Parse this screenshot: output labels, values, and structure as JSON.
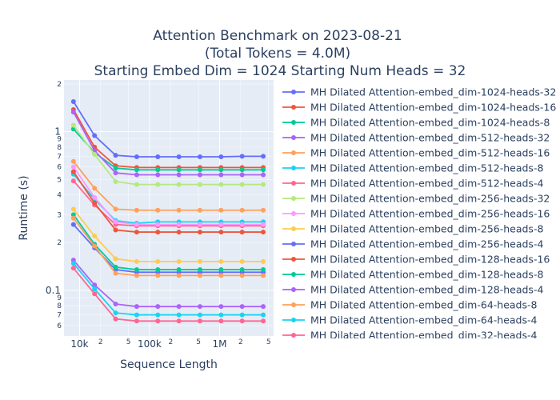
{
  "chart_data": {
    "type": "line",
    "title_lines": [
      "Attention Benchmark on 2023-08-21",
      "(Total Tokens = 4.0M)",
      "Starting Embed Dim = 1024 Starting Num Heads = 32"
    ],
    "xlabel": "Sequence Length",
    "ylabel": "Runtime (s)",
    "x_scale": "log",
    "y_scale": "log",
    "xlim": [
      6000,
      5900000
    ],
    "ylim": [
      0.0515,
      2.12
    ],
    "x": [
      8192,
      16384,
      32768,
      65536,
      131072,
      262144,
      524288,
      1048576,
      2097152,
      4194304
    ],
    "x_major_ticks": [
      {
        "v": 10000,
        "label": "10k"
      },
      {
        "v": 100000,
        "label": "100k"
      },
      {
        "v": 1000000,
        "label": "1M"
      }
    ],
    "x_minor_ticks": [
      {
        "v": 20000,
        "label": "2"
      },
      {
        "v": 50000,
        "label": "5"
      },
      {
        "v": 200000,
        "label": "2"
      },
      {
        "v": 500000,
        "label": "5"
      },
      {
        "v": 2000000,
        "label": "2"
      },
      {
        "v": 5000000,
        "label": "5"
      }
    ],
    "y_major_ticks": [
      {
        "v": 1,
        "label": "1"
      },
      {
        "v": 0.1,
        "label": "0.1"
      }
    ],
    "y_minor_ticks": [
      {
        "v": 0.2,
        "label": "2"
      },
      {
        "v": 0.3,
        "label": "3"
      },
      {
        "v": 0.4,
        "label": "4"
      },
      {
        "v": 0.5,
        "label": "5"
      },
      {
        "v": 0.6,
        "label": "6"
      },
      {
        "v": 0.7,
        "label": "7"
      },
      {
        "v": 0.8,
        "label": "8"
      },
      {
        "v": 0.9,
        "label": "9"
      },
      {
        "v": 2,
        "label": "2"
      },
      {
        "v": 0.06,
        "label": "6"
      },
      {
        "v": 0.07,
        "label": "7"
      },
      {
        "v": 0.08,
        "label": "8"
      },
      {
        "v": 0.09,
        "label": "9"
      }
    ],
    "series": [
      {
        "name": "MH Dilated Attention-embed_dim-1024-heads-32",
        "color": "#636efa",
        "values": [
          1.55,
          0.945,
          0.71,
          0.695,
          0.695,
          0.695,
          0.695,
          0.695,
          0.7,
          0.7
        ]
      },
      {
        "name": "MH Dilated Attention-embed_dim-1024-heads-16",
        "color": "#EF553B",
        "values": [
          1.38,
          0.8,
          0.61,
          0.595,
          0.595,
          0.595,
          0.595,
          0.595,
          0.595,
          0.595
        ]
      },
      {
        "name": "MH Dilated Attention-embed_dim-1024-heads-8",
        "color": "#00cc96",
        "values": [
          1.04,
          0.74,
          0.59,
          0.575,
          0.575,
          0.575,
          0.575,
          0.575,
          0.575,
          0.575
        ]
      },
      {
        "name": "MH Dilated Attention-embed_dim-512-heads-32",
        "color": "#ab63fa",
        "values": [
          1.33,
          0.76,
          0.55,
          0.535,
          0.535,
          0.535,
          0.535,
          0.535,
          0.535,
          0.535
        ]
      },
      {
        "name": "MH Dilated Attention-embed_dim-512-heads-16",
        "color": "#FFA15A",
        "values": [
          0.65,
          0.44,
          0.325,
          0.32,
          0.32,
          0.32,
          0.32,
          0.32,
          0.32,
          0.32
        ]
      },
      {
        "name": "MH Dilated Attention-embed_dim-512-heads-8",
        "color": "#19d3f3",
        "values": [
          0.54,
          0.375,
          0.275,
          0.265,
          0.27,
          0.27,
          0.27,
          0.27,
          0.27,
          0.27
        ]
      },
      {
        "name": "MH Dilated Attention-embed_dim-512-heads-4",
        "color": "#FF6692",
        "values": [
          0.49,
          0.345,
          0.26,
          0.255,
          0.255,
          0.255,
          0.255,
          0.255,
          0.255,
          0.255
        ]
      },
      {
        "name": "MH Dilated Attention-embed_dim-256-heads-32",
        "color": "#B6E880",
        "values": [
          1.1,
          0.72,
          0.485,
          0.465,
          0.465,
          0.465,
          0.465,
          0.465,
          0.465,
          0.465
        ]
      },
      {
        "name": "MH Dilated Attention-embed_dim-256-heads-16",
        "color": "#FF97FF",
        "values": [
          0.6,
          0.385,
          0.27,
          0.26,
          0.26,
          0.26,
          0.26,
          0.26,
          0.26,
          0.26
        ]
      },
      {
        "name": "MH Dilated Attention-embed_dim-256-heads-8",
        "color": "#FECB52",
        "values": [
          0.325,
          0.22,
          0.158,
          0.152,
          0.152,
          0.152,
          0.152,
          0.152,
          0.152,
          0.152
        ]
      },
      {
        "name": "MH Dilated Attention-embed_dim-256-heads-4",
        "color": "#636efa",
        "values": [
          0.26,
          0.185,
          0.135,
          0.13,
          0.13,
          0.13,
          0.13,
          0.13,
          0.13,
          0.13
        ]
      },
      {
        "name": "MH Dilated Attention-embed_dim-128-heads-16",
        "color": "#EF553B",
        "values": [
          0.56,
          0.355,
          0.24,
          0.233,
          0.233,
          0.233,
          0.233,
          0.233,
          0.233,
          0.233
        ]
      },
      {
        "name": "MH Dilated Attention-embed_dim-128-heads-8",
        "color": "#00cc96",
        "values": [
          0.3,
          0.195,
          0.14,
          0.135,
          0.135,
          0.135,
          0.135,
          0.135,
          0.135,
          0.135
        ]
      },
      {
        "name": "MH Dilated Attention-embed_dim-128-heads-4",
        "color": "#ab63fa",
        "values": [
          0.155,
          0.108,
          0.082,
          0.079,
          0.079,
          0.079,
          0.079,
          0.079,
          0.079,
          0.079
        ]
      },
      {
        "name": "MH Dilated Attention-embed_dim-64-heads-8",
        "color": "#FFA15A",
        "values": [
          0.285,
          0.19,
          0.128,
          0.124,
          0.124,
          0.124,
          0.124,
          0.124,
          0.124,
          0.124
        ]
      },
      {
        "name": "MH Dilated Attention-embed_dim-64-heads-4",
        "color": "#19d3f3",
        "values": [
          0.148,
          0.102,
          0.072,
          0.07,
          0.07,
          0.07,
          0.07,
          0.07,
          0.07,
          0.07
        ]
      },
      {
        "name": "MH Dilated Attention-embed_dim-32-heads-4",
        "color": "#FF6692",
        "values": [
          0.138,
          0.095,
          0.066,
          0.064,
          0.064,
          0.064,
          0.064,
          0.064,
          0.064,
          0.064
        ]
      }
    ]
  }
}
